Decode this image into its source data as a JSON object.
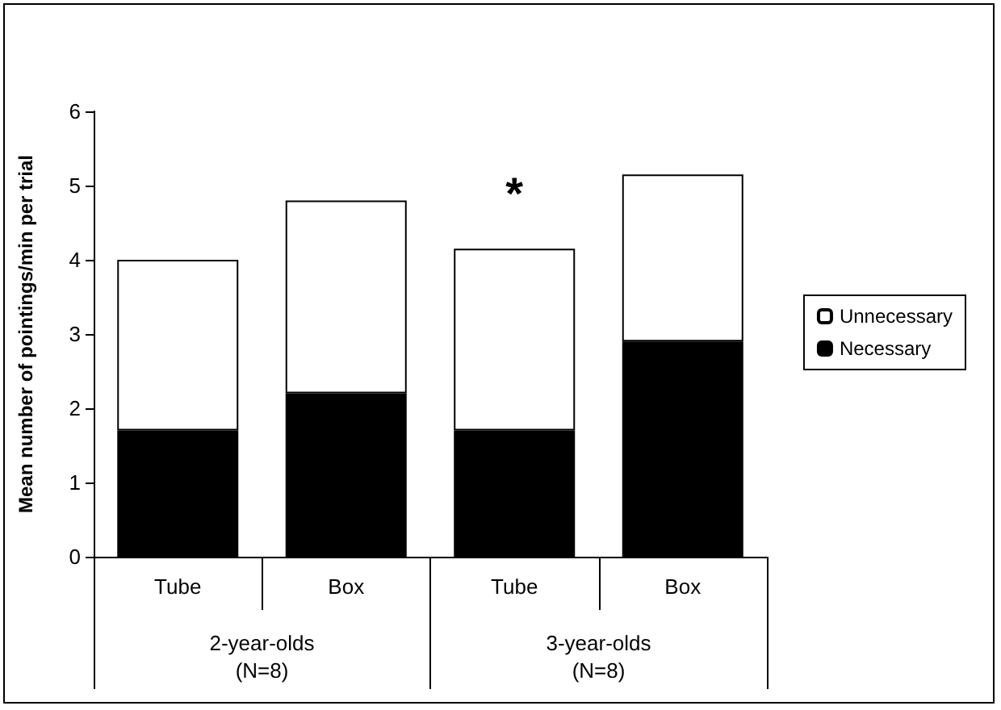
{
  "chart_data": {
    "type": "bar",
    "ylabel": "Mean number of pointings/min per trial",
    "categories": [
      "Tube",
      "Box",
      "Tube",
      "Box"
    ],
    "series": [
      {
        "name": "Necessary",
        "color": "#000000",
        "values": [
          1.7,
          2.2,
          1.7,
          2.9
        ]
      },
      {
        "name": "Unnecessary",
        "color": "#ffffff",
        "values": [
          2.3,
          2.6,
          2.45,
          2.25
        ]
      }
    ],
    "stacked": true,
    "ylim": [
      0,
      6
    ],
    "yticks": [
      0,
      1,
      2,
      3,
      4,
      5,
      6
    ],
    "grid": false,
    "legend": "right",
    "annotations": [
      "2-year-olds\n(N=8)",
      "3-year-olds\n(N=8)",
      "*"
    ]
  }
}
